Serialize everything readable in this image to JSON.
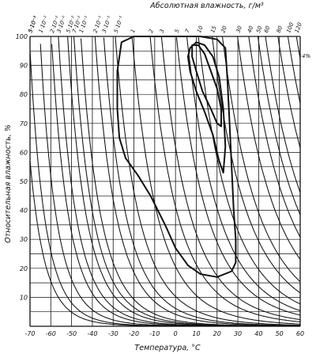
{
  "chart_data": {
    "type": "line",
    "title": "Абсолютная влажность, г/м³",
    "xlabel": "Температура, °C",
    "ylabel": "Относительная влажность, %",
    "xlim": [
      -70,
      60
    ],
    "ylim": [
      0,
      100
    ],
    "x_ticks": [
      "-70",
      "-60",
      "-50",
      "-40",
      "-30",
      "-20",
      "-10",
      "0",
      "10",
      "20",
      "30",
      "40",
      "50",
      "60"
    ],
    "y_ticks": [
      "10",
      "20",
      "30",
      "40",
      "50",
      "60",
      "70",
      "80",
      "90",
      "100"
    ],
    "grid": true,
    "corner_label": "4%",
    "absolute_humidity_curves": [
      {
        "label": "3·10⁻³",
        "value": 0.003
      },
      {
        "label": "5·10⁻³",
        "value": 0.005
      },
      {
        "label": "1·10⁻²",
        "value": 0.01
      },
      {
        "label": "2·10⁻²",
        "value": 0.02
      },
      {
        "label": "3·10⁻²",
        "value": 0.03
      },
      {
        "label": "5·10⁻²",
        "value": 0.05
      },
      {
        "label": "7·10⁻²",
        "value": 0.07
      },
      {
        "label": "1·10⁻¹",
        "value": 0.1
      },
      {
        "label": "2·10⁻¹",
        "value": 0.2
      },
      {
        "label": "3·10⁻¹",
        "value": 0.3
      },
      {
        "label": "5·10⁻¹",
        "value": 0.5
      },
      {
        "label": "1",
        "value": 1
      },
      {
        "label": "2",
        "value": 2
      },
      {
        "label": "3",
        "value": 3
      },
      {
        "label": "5",
        "value": 5
      },
      {
        "label": "7",
        "value": 7
      },
      {
        "label": "10",
        "value": 10
      },
      {
        "label": "15",
        "value": 15
      },
      {
        "label": "20",
        "value": 20
      },
      {
        "label": "30",
        "value": 30
      },
      {
        "label": "40",
        "value": 40
      },
      {
        "label": "50",
        "value": 50
      },
      {
        "label": "60",
        "value": 60
      },
      {
        "label": "80",
        "value": 80
      },
      {
        "label": "100",
        "value": 100
      },
      {
        "label": "120",
        "value": 120
      }
    ],
    "outer_contour": [
      [
        -26,
        98
      ],
      [
        -20,
        100
      ],
      [
        -6,
        100
      ],
      [
        5,
        100
      ],
      [
        12,
        100
      ],
      [
        20,
        99
      ],
      [
        24,
        96
      ],
      [
        25,
        85
      ],
      [
        26,
        70
      ],
      [
        27,
        55
      ],
      [
        28,
        40
      ],
      [
        29,
        30
      ],
      [
        29,
        22
      ],
      [
        27,
        19
      ],
      [
        20,
        17
      ],
      [
        12,
        18
      ],
      [
        6,
        21
      ],
      [
        0,
        27
      ],
      [
        -5,
        35
      ],
      [
        -12,
        45
      ],
      [
        -18,
        52
      ],
      [
        -24,
        58
      ],
      [
        -27,
        65
      ],
      [
        -28,
        75
      ],
      [
        -28,
        88
      ],
      [
        -26,
        98
      ]
    ],
    "middle_contour": [
      [
        7,
        96
      ],
      [
        10,
        98
      ],
      [
        14,
        97
      ],
      [
        18,
        93
      ],
      [
        21,
        86
      ],
      [
        23,
        75
      ],
      [
        24,
        62
      ],
      [
        23,
        53
      ],
      [
        21,
        57
      ],
      [
        18,
        66
      ],
      [
        14,
        74
      ],
      [
        10,
        81
      ],
      [
        7,
        88
      ],
      [
        6,
        93
      ],
      [
        7,
        96
      ]
    ],
    "inner_contour": [
      [
        8,
        97
      ],
      [
        11,
        97
      ],
      [
        14,
        94
      ],
      [
        17,
        88
      ],
      [
        20,
        82
      ],
      [
        22,
        75
      ],
      [
        22,
        69
      ],
      [
        20,
        70
      ],
      [
        17,
        75
      ],
      [
        13,
        81
      ],
      [
        10,
        88
      ],
      [
        8,
        93
      ],
      [
        8,
        97
      ]
    ]
  }
}
